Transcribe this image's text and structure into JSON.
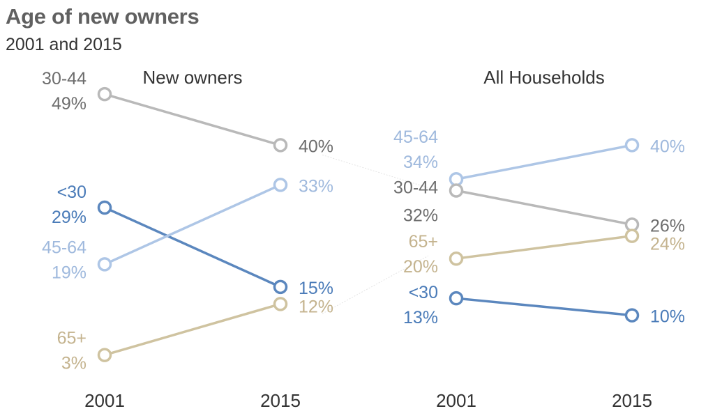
{
  "title": "Age of new owners",
  "subtitle": "2001 and 2015",
  "colors": {
    "30-44": "#b9b9b9",
    "45-64": "#aec6e6",
    "<30": "#5b87be",
    "65+": "#cfc3a0",
    "label_30-44": "#6d6d6d",
    "label_45-64": "#9fb9dd",
    "label_<30": "#4a7bb8",
    "label_65+": "#c4b38e",
    "connector": "#e4e4e4",
    "axis_text": "#333333"
  },
  "chart_data": [
    {
      "type": "line",
      "title": "New owners",
      "x": [
        "2001",
        "2015"
      ],
      "series": [
        {
          "name": "30-44",
          "values": [
            49,
            40
          ],
          "labels": [
            "49%",
            "40%"
          ]
        },
        {
          "name": "<30",
          "values": [
            29,
            15
          ],
          "labels": [
            "29%",
            "15%"
          ]
        },
        {
          "name": "45-64",
          "values": [
            19,
            33
          ],
          "labels": [
            "19%",
            "33%"
          ]
        },
        {
          "name": "65+",
          "values": [
            3,
            12
          ],
          "labels": [
            "3%",
            "12%"
          ]
        }
      ],
      "ylim": [
        0,
        50
      ],
      "grid": false,
      "legend": "none"
    },
    {
      "type": "line",
      "title": "All Households",
      "x": [
        "2001",
        "2015"
      ],
      "series": [
        {
          "name": "45-64",
          "values": [
            34,
            40
          ],
          "labels": [
            "34%",
            "40%"
          ]
        },
        {
          "name": "30-44",
          "values": [
            32,
            26
          ],
          "labels": [
            "32%",
            "26%"
          ]
        },
        {
          "name": "65+",
          "values": [
            20,
            24
          ],
          "labels": [
            "20%",
            "24%"
          ]
        },
        {
          "name": "<30",
          "values": [
            13,
            10
          ],
          "labels": [
            "13%",
            "10%"
          ]
        }
      ],
      "ylim": [
        0,
        50
      ],
      "grid": false,
      "legend": "none"
    }
  ]
}
